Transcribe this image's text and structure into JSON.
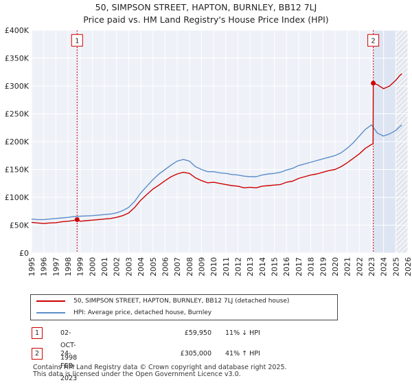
{
  "title_line1": "50, SIMPSON STREET, HAPTON, BURNLEY, BB12 7LJ",
  "title_line2": "Price paid vs. HM Land Registry's House Price Index (HPI)",
  "chart_data": {
    "type": "line",
    "title": "50, SIMPSON STREET, HAPTON, BURNLEY, BB12 7LJ — Price paid vs. HM Land Registry's House Price Index (HPI)",
    "xlabel": "",
    "ylabel": "",
    "xlim": [
      1995,
      2026
    ],
    "ylim": [
      0,
      400000
    ],
    "x_ticks": [
      1995,
      1996,
      1997,
      1998,
      1999,
      2000,
      2001,
      2002,
      2003,
      2004,
      2005,
      2006,
      2007,
      2008,
      2009,
      2010,
      2011,
      2012,
      2013,
      2014,
      2015,
      2016,
      2017,
      2018,
      2019,
      2020,
      2021,
      2022,
      2023,
      2024,
      2025,
      2026
    ],
    "y_ticks": [
      0,
      50000,
      100000,
      150000,
      200000,
      250000,
      300000,
      350000,
      400000
    ],
    "y_tick_labels": [
      "£0",
      "£50K",
      "£100K",
      "£150K",
      "£200K",
      "£250K",
      "£300K",
      "£350K",
      "£400K"
    ],
    "grid": true,
    "future_hatch_from": 2025.0,
    "highlight_band": [
      2023.15,
      2025.0
    ],
    "series": [
      {
        "name": "50, SIMPSON STREET, HAPTON, BURNLEY, BB12 7LJ (detached house)",
        "color": "#cc0000",
        "x": [
          1995.0,
          1995.5,
          1996.0,
          1996.5,
          1997.0,
          1997.5,
          1998.0,
          1998.5,
          1998.75,
          1999.0,
          1999.5,
          2000.0,
          2000.5,
          2001.0,
          2001.5,
          2002.0,
          2002.5,
          2003.0,
          2003.5,
          2004.0,
          2004.5,
          2005.0,
          2005.5,
          2006.0,
          2006.5,
          2007.0,
          2007.5,
          2008.0,
          2008.5,
          2009.0,
          2009.5,
          2010.0,
          2010.5,
          2011.0,
          2011.5,
          2012.0,
          2012.5,
          2013.0,
          2013.5,
          2014.0,
          2014.5,
          2015.0,
          2015.5,
          2016.0,
          2016.5,
          2017.0,
          2017.5,
          2018.0,
          2018.5,
          2019.0,
          2019.5,
          2020.0,
          2020.5,
          2021.0,
          2021.5,
          2022.0,
          2022.5,
          2023.0,
          2023.13,
          2023.15,
          2023.5,
          2024.0,
          2024.5,
          2025.0,
          2025.3,
          2025.5
        ],
        "values": [
          55000,
          54000,
          53000,
          54000,
          54500,
          56000,
          57000,
          58500,
          59950,
          57000,
          58000,
          59000,
          60000,
          61000,
          62000,
          64000,
          67000,
          72000,
          82000,
          95000,
          105000,
          115000,
          122000,
          130000,
          137000,
          142000,
          145000,
          143000,
          135000,
          130000,
          126000,
          127000,
          125000,
          123000,
          121000,
          120000,
          117000,
          118000,
          117000,
          120000,
          121000,
          122000,
          123000,
          127000,
          129000,
          134000,
          137000,
          140000,
          142000,
          145000,
          148000,
          150000,
          155000,
          162000,
          170000,
          178000,
          188000,
          195000,
          196000,
          305000,
          302000,
          295000,
          300000,
          310000,
          318000,
          322000
        ]
      },
      {
        "name": "HPI: Average price, detached house, Burnley",
        "color": "#5b8dc9",
        "x": [
          1995.0,
          1995.5,
          1996.0,
          1996.5,
          1997.0,
          1997.5,
          1998.0,
          1998.5,
          1999.0,
          1999.5,
          2000.0,
          2000.5,
          2001.0,
          2001.5,
          2002.0,
          2002.5,
          2003.0,
          2003.5,
          2004.0,
          2004.5,
          2005.0,
          2005.5,
          2006.0,
          2006.5,
          2007.0,
          2007.5,
          2008.0,
          2008.5,
          2009.0,
          2009.5,
          2010.0,
          2010.5,
          2011.0,
          2011.5,
          2012.0,
          2012.5,
          2013.0,
          2013.5,
          2014.0,
          2014.5,
          2015.0,
          2015.5,
          2016.0,
          2016.5,
          2017.0,
          2017.5,
          2018.0,
          2018.5,
          2019.0,
          2019.5,
          2020.0,
          2020.5,
          2021.0,
          2021.5,
          2022.0,
          2022.5,
          2023.0,
          2023.5,
          2024.0,
          2024.5,
          2025.0,
          2025.3,
          2025.5
        ],
        "values": [
          61000,
          60000,
          60000,
          61000,
          62000,
          63000,
          64000,
          65500,
          66000,
          66500,
          67000,
          68000,
          69000,
          70000,
          72000,
          76000,
          82000,
          93000,
          108000,
          120000,
          132000,
          142000,
          150000,
          158000,
          165000,
          168000,
          165000,
          155000,
          150000,
          146000,
          146000,
          144000,
          143000,
          141000,
          140000,
          138000,
          137000,
          137000,
          140000,
          142000,
          143000,
          145000,
          149000,
          152000,
          157000,
          160000,
          163000,
          166000,
          169000,
          172000,
          175000,
          180000,
          188000,
          198000,
          210000,
          222000,
          230000,
          215000,
          210000,
          214000,
          220000,
          226000,
          230000
        ]
      }
    ],
    "annotations": [
      {
        "label": "1",
        "x": 1998.75,
        "price": 59950
      },
      {
        "label": "2",
        "x": 2023.15,
        "price": 305000
      }
    ]
  },
  "legend": {
    "items": [
      {
        "label": "50, SIMPSON STREET, HAPTON, BURNLEY, BB12 7LJ (detached house)",
        "color": "#cc0000"
      },
      {
        "label": "HPI: Average price, detached house, Burnley",
        "color": "#5b8dc9"
      }
    ]
  },
  "transactions": [
    {
      "num": "1",
      "date": "02-OCT-1998",
      "price": "£59,950",
      "hpi": "11% ↓ HPI"
    },
    {
      "num": "2",
      "date": "24-FEB-2023",
      "price": "£305,000",
      "hpi": "41% ↑ HPI"
    }
  ],
  "footer": {
    "line1": "Contains HM Land Registry data © Crown copyright and database right 2025.",
    "line2": "This data is licensed under the Open Government Licence v3.0."
  }
}
